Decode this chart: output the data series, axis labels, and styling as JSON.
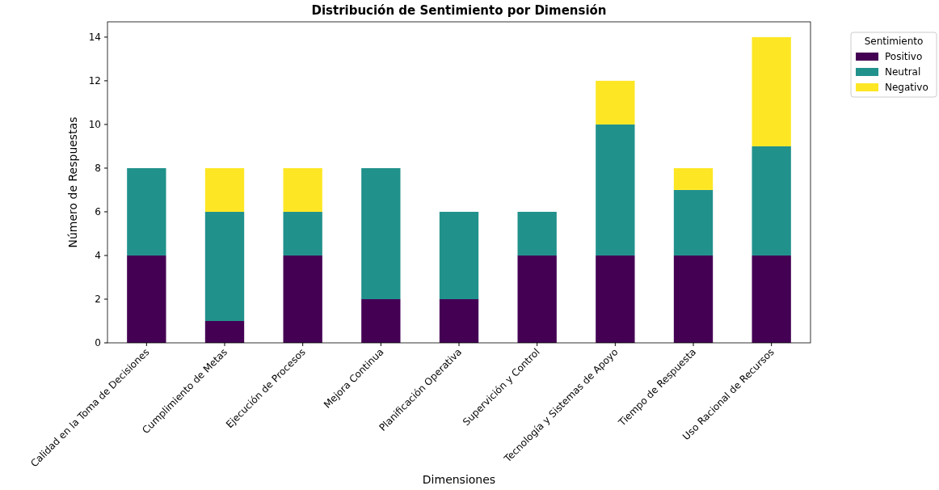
{
  "chart_data": {
    "type": "bar",
    "stacked": true,
    "title": "Distribución de Sentimiento por Dimensión",
    "xlabel": "Dimensiones",
    "ylabel": "Número de Respuestas",
    "legend_title": "Sentimiento",
    "legend": "top right",
    "grid": false,
    "categories": [
      "Calidad en la Toma de Decisiones",
      "Cumplimiento de Metas",
      "Ejecución de Procesos",
      "Mejora Continua",
      "Planificación Operativa",
      "Supervición y Control",
      "Tecnología y Sistemas de Apoyo",
      "Tiempo de Respuesta",
      "Uso Racional de Recursos"
    ],
    "ylim": [
      0,
      14.7
    ],
    "yticks": [
      0,
      2,
      4,
      6,
      8,
      10,
      12,
      14
    ],
    "series": [
      {
        "name": "Positivo",
        "color": "#440154",
        "values": [
          4,
          1,
          4,
          2,
          2,
          4,
          4,
          4,
          4
        ]
      },
      {
        "name": "Neutral",
        "color": "#21918c",
        "values": [
          4,
          5,
          2,
          6,
          4,
          2,
          6,
          3,
          5
        ]
      },
      {
        "name": "Negativo",
        "color": "#fde725",
        "values": [
          0,
          2,
          2,
          0,
          0,
          0,
          2,
          1,
          5
        ]
      }
    ]
  }
}
